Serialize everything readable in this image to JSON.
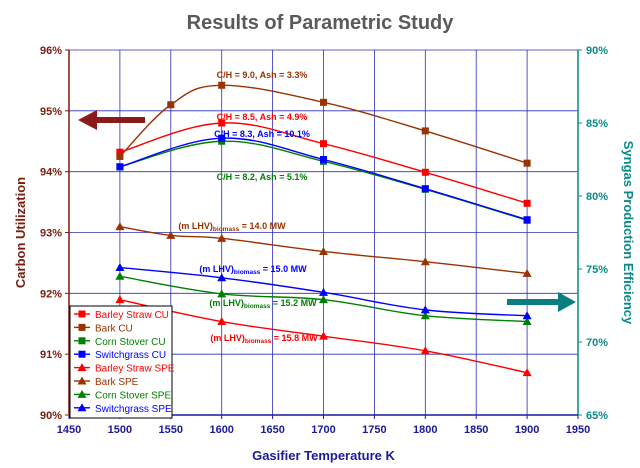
{
  "colors": {
    "plot_bg": "#ffffff",
    "grid": "#2d2db8",
    "left_axis": "#7a1c0e",
    "right_axis": "#0a8a8a",
    "x_axis": "#1a1a9a",
    "title": "#5a5a5a"
  },
  "chart_data": {
    "type": "line",
    "title": "Results of Parametric Study",
    "xlabel": "Gasifier Temperature K",
    "ylabel_left": "Carbon Utilization",
    "ylabel_right": "Syngas Production Efficiency",
    "xlim": [
      1450,
      1950
    ],
    "ylim_left": [
      90,
      96
    ],
    "ylim_right": [
      65,
      90
    ],
    "x_ticks": [
      1450,
      1500,
      1550,
      1600,
      1650,
      1700,
      1750,
      1800,
      1850,
      1900,
      1950
    ],
    "x_tick_labels": [
      "1450",
      "1500",
      "1550",
      "1600",
      "1650",
      "1700",
      "1750",
      "1800",
      "1850",
      "1900",
      "1950"
    ],
    "y_left_ticks": [
      90,
      91,
      92,
      93,
      94,
      95,
      96
    ],
    "y_left_tick_labels": [
      "90%",
      "91%",
      "92%",
      "93%",
      "94%",
      "95%",
      "96%"
    ],
    "y_right_ticks": [
      65,
      70,
      75,
      80,
      85,
      90
    ],
    "y_right_tick_labels": [
      "65%",
      "70%",
      "75%",
      "80%",
      "85%",
      "90%"
    ],
    "grid": true,
    "legend_position": "bottom-left",
    "series": [
      {
        "name": "Barley Straw CU",
        "axis": "left",
        "marker": "square",
        "color": "#ff0000",
        "x": [
          1500,
          1600,
          1700,
          1800,
          1900
        ],
        "values": [
          94.32,
          94.8,
          94.46,
          93.99,
          93.48
        ]
      },
      {
        "name": "Bark CU",
        "axis": "left",
        "marker": "square",
        "color": "#993300",
        "x": [
          1500,
          1550,
          1600,
          1700,
          1800,
          1900
        ],
        "values": [
          94.25,
          95.1,
          95.42,
          95.14,
          94.67,
          94.14
        ]
      },
      {
        "name": "Corn Stover CU",
        "axis": "left",
        "marker": "square",
        "color": "#008000",
        "x": [
          1500,
          1600,
          1700,
          1800,
          1900
        ],
        "values": [
          94.08,
          94.5,
          94.17,
          93.71,
          93.2
        ]
      },
      {
        "name": "Switchgrass CU",
        "axis": "left",
        "marker": "square",
        "color": "#0000ff",
        "x": [
          1500,
          1600,
          1700,
          1800,
          1900
        ],
        "values": [
          94.08,
          94.55,
          94.2,
          93.72,
          93.21
        ]
      },
      {
        "name": "Barley Straw SPE",
        "axis": "right",
        "marker": "triangle",
        "color": "#ff0000",
        "x": [
          1500,
          1600,
          1700,
          1800,
          1900
        ],
        "values": [
          72.9,
          71.4,
          70.4,
          69.4,
          67.9
        ]
      },
      {
        "name": "Bark SPE",
        "axis": "right",
        "marker": "triangle",
        "color": "#993300",
        "x": [
          1500,
          1550,
          1600,
          1700,
          1800,
          1900
        ],
        "values": [
          77.9,
          77.3,
          77.1,
          76.2,
          75.5,
          74.7
        ]
      },
      {
        "name": "Corn Stover SPE",
        "axis": "right",
        "marker": "triangle",
        "color": "#008000",
        "x": [
          1500,
          1600,
          1700,
          1800,
          1900
        ],
        "values": [
          74.5,
          73.3,
          72.9,
          71.8,
          71.4
        ]
      },
      {
        "name": "Switchgrass SPE",
        "axis": "right",
        "marker": "triangle",
        "color": "#0000ff",
        "x": [
          1500,
          1600,
          1700,
          1800,
          1900
        ],
        "values": [
          75.1,
          74.4,
          73.4,
          72.2,
          71.8
        ]
      }
    ],
    "annotations": [
      {
        "text": "C/H = 9.0, Ash = 3.3%",
        "color": "#993300"
      },
      {
        "text": "C/H = 8.5, Ash = 4.9%",
        "color": "#ff0000"
      },
      {
        "text": "C/H = 8.3, Ash = 10.1%",
        "color": "#0000ff"
      },
      {
        "text": "C/H = 8.2, Ash = 5.1%",
        "color": "#008000"
      },
      {
        "text": "(m LHV)",
        "sub": "biomass",
        "tail": " = 14.0 MW",
        "color": "#993300"
      },
      {
        "text": "(m LHV)",
        "sub": "biomass",
        "tail": " = 15.0 MW",
        "color": "#0000ff"
      },
      {
        "text": "(m LHV)",
        "sub": "biomass",
        "tail": " = 15.2 MW",
        "color": "#008000"
      },
      {
        "text": "(m LHV)",
        "sub": "biomass",
        "tail": " = 15.8 MW",
        "color": "#ff0000"
      }
    ],
    "arrows": [
      {
        "direction": "left",
        "points_to": "left axis",
        "color": "#8b1a1a"
      },
      {
        "direction": "right",
        "points_to": "right axis",
        "color": "#0b7f7f"
      }
    ]
  }
}
